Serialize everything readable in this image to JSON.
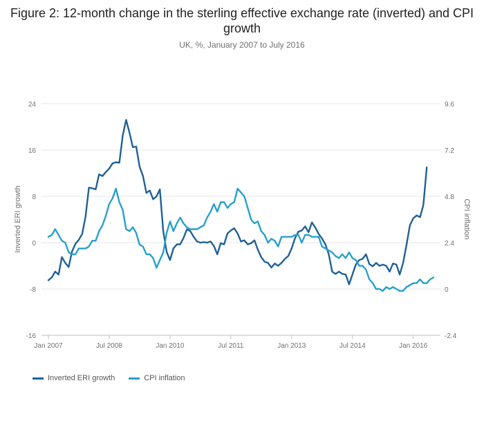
{
  "chart_data": {
    "type": "line",
    "title": "Figure 2: 12-month change in the sterling effective exchange rate (inverted) and CPI growth",
    "subtitle": "UK, %, January 2007 to July 2016",
    "ylabel": "Inverted ERI growth",
    "y2label": "CPI inflation",
    "ylim": [
      -16,
      24
    ],
    "y2lim": [
      -2.4,
      9.6
    ],
    "y_ticks": [
      "24",
      "16",
      "8",
      "0",
      "-8",
      "-16"
    ],
    "y2_ticks": [
      "9.6",
      "7.2",
      "4.8",
      "2.4",
      "0",
      "-2.4"
    ],
    "x_ticks": [
      "Jan 2007",
      "Jul 2008",
      "Jan 2010",
      "Jul 2011",
      "Jan 2013",
      "Jul 2014",
      "Jan 2016"
    ],
    "x_start": "Jan 2007",
    "x_end": "Jul 2016",
    "legend_position": "bottom-left",
    "series": [
      {
        "name": "Inverted ERI growth",
        "color": "#206095",
        "axis": "left",
        "values": [
          -6.5,
          -6.0,
          -5.0,
          -5.5,
          -2.5,
          -3.5,
          -4.2,
          -1.5,
          -0.2,
          0.5,
          1.5,
          4.5,
          9.5,
          9.4,
          9.2,
          11.8,
          11.5,
          12.2,
          12.8,
          13.7,
          13.9,
          13.8,
          18.5,
          21.2,
          19.0,
          16.5,
          16.6,
          13.1,
          11.5,
          8.6,
          9.0,
          7.5,
          8.0,
          9.2,
          2.0,
          -1.6,
          -3.0,
          -1.0,
          -0.3,
          -0.3,
          0.8,
          2.3,
          2.0,
          1.0,
          0.2,
          0.0,
          0.1,
          0.0,
          0.2,
          -0.6,
          -2.0,
          -0.1,
          -0.3,
          1.6,
          2.1,
          2.5,
          1.6,
          0.2,
          0.4,
          -0.3,
          -0.1,
          0.4,
          -1.2,
          -2.5,
          -3.3,
          -3.5,
          -4.3,
          -3.6,
          -4.0,
          -3.5,
          -2.8,
          -2.3,
          -1.0,
          0.8,
          1.9,
          2.1,
          2.8,
          1.8,
          3.5,
          2.6,
          1.5,
          0.7,
          -0.3,
          -2.0,
          -5.0,
          -5.4,
          -5.0,
          -5.4,
          -5.5,
          -7.2,
          -5.5,
          -3.8,
          -3.0,
          -2.8,
          -2.0,
          -3.7,
          -4.1,
          -3.5,
          -4.0,
          -3.8,
          -4.0,
          -5.0,
          -3.6,
          -3.8,
          -5.5,
          -3.5,
          -0.4,
          3.0,
          4.2,
          4.7,
          4.4,
          6.5,
          13.0
        ]
      },
      {
        "name": "CPI inflation",
        "color": "#27a0cc",
        "axis": "right",
        "values": [
          2.7,
          2.8,
          3.1,
          2.8,
          2.5,
          2.4,
          1.9,
          1.8,
          1.8,
          2.1,
          2.1,
          2.1,
          2.2,
          2.5,
          2.5,
          3.0,
          3.3,
          3.8,
          4.4,
          4.7,
          5.2,
          4.5,
          4.1,
          3.1,
          3.0,
          3.2,
          2.9,
          2.3,
          2.2,
          1.8,
          1.8,
          1.6,
          1.1,
          1.5,
          1.9,
          2.9,
          3.5,
          3.0,
          3.4,
          3.7,
          3.4,
          3.2,
          3.1,
          3.1,
          3.1,
          3.2,
          3.3,
          3.7,
          4.0,
          4.4,
          4.0,
          4.5,
          4.5,
          4.2,
          4.4,
          4.5,
          5.2,
          5.0,
          4.8,
          4.2,
          3.6,
          3.4,
          3.5,
          3.0,
          2.8,
          2.4,
          2.6,
          2.5,
          2.2,
          2.7,
          2.7,
          2.7,
          2.7,
          2.8,
          2.8,
          2.4,
          2.8,
          2.8,
          2.7,
          2.7,
          2.7,
          2.2,
          2.1,
          2.0,
          1.9,
          1.7,
          1.6,
          1.8,
          1.6,
          1.9,
          1.6,
          1.5,
          1.2,
          1.2,
          1.0,
          0.5,
          0.3,
          0.0,
          0.0,
          -0.1,
          0.1,
          0.0,
          0.1,
          0.0,
          -0.1,
          -0.1,
          0.1,
          0.2,
          0.3,
          0.3,
          0.5,
          0.3,
          0.3,
          0.5,
          0.6
        ]
      }
    ]
  }
}
